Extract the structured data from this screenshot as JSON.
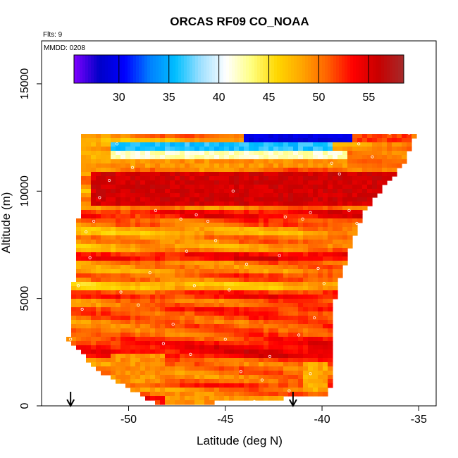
{
  "chart_data": {
    "type": "heatmap",
    "title": "ORCAS RF09 CO_NOAA",
    "flights_note": "Flts: 9",
    "date_note": "MMDD: 0208",
    "xlabel": "Latitude (deg N)",
    "ylabel": "Altitude (m)",
    "xlim": [
      -54.5,
      -34.1
    ],
    "ylim": [
      0,
      17000
    ],
    "x_ticks": [
      -50,
      -45,
      -40,
      -35
    ],
    "x_tick_labels": [
      "-50",
      "-45",
      "-40",
      "-35"
    ],
    "y_ticks": [
      0,
      5000,
      10000,
      15000
    ],
    "y_tick_labels": [
      "0",
      "5000",
      "10000",
      "15000"
    ],
    "colorbar": {
      "range": [
        25.5,
        58.5
      ],
      "ticks": [
        30,
        35,
        40,
        45,
        50,
        55
      ],
      "tick_labels": [
        "30",
        "35",
        "40",
        "45",
        "50",
        "55"
      ],
      "colors": [
        "#7f00ff",
        "#0000c8",
        "#0000ff",
        "#0080ff",
        "#00bfff",
        "#9fe0ff",
        "#ffffff",
        "#ffff80",
        "#ffd700",
        "#ffa500",
        "#ff6000",
        "#ff0000",
        "#c80000",
        "#a52a2a"
      ]
    },
    "domain_polygon": [
      [
        -52.4,
        12600
      ],
      [
        -38.4,
        12600
      ],
      [
        -38.0,
        12700
      ],
      [
        -35.1,
        12700
      ],
      [
        -35.8,
        11300
      ],
      [
        -37.8,
        9100
      ],
      [
        -39.3,
        5500
      ],
      [
        -39.6,
        500
      ],
      [
        -48.4,
        0
      ],
      [
        -51.8,
        1800
      ],
      [
        -53.1,
        3100
      ],
      [
        -52.9,
        5100
      ],
      [
        -52.6,
        8500
      ],
      [
        -52.4,
        10800
      ]
    ],
    "field_features": [
      {
        "lat_min": -52.0,
        "lat_max": -36.0,
        "alt_min": 9400,
        "alt_max": 10800,
        "value": 55.5
      },
      {
        "lat_min": -51.0,
        "lat_max": -39.0,
        "alt_min": 11000,
        "alt_max": 11500,
        "value": 49
      },
      {
        "lat_min": -51.0,
        "lat_max": -38.6,
        "alt_min": 11500,
        "alt_max": 11900,
        "value": 42
      },
      {
        "lat_min": -51.0,
        "lat_max": -39.5,
        "alt_min": 11900,
        "alt_max": 12250,
        "value": 36
      },
      {
        "lat_min": -44.0,
        "lat_max": -38.5,
        "alt_min": 12250,
        "alt_max": 12600,
        "value": 29
      },
      {
        "lat_min": -38.5,
        "lat_max": -35.5,
        "alt_min": 12200,
        "alt_max": 12700,
        "value": 52
      },
      {
        "lat_min": -48.0,
        "lat_max": -42.0,
        "alt_min": 0,
        "alt_max": 500,
        "value": 49
      },
      {
        "lat_min": -51.0,
        "lat_max": -48.0,
        "alt_min": 1000,
        "alt_max": 2500,
        "value": 49
      },
      {
        "lat_min": -41.0,
        "lat_max": -39.6,
        "alt_min": 600,
        "alt_max": 2000,
        "value": 48
      }
    ],
    "sample_points": [
      [
        -53.0,
        3100
      ],
      [
        -52.4,
        4500
      ],
      [
        -52.6,
        5600
      ],
      [
        -52.0,
        6900
      ],
      [
        -51.8,
        8600
      ],
      [
        -51.5,
        9700
      ],
      [
        -51.0,
        10500
      ],
      [
        -50.6,
        12200
      ],
      [
        -49.8,
        11100
      ],
      [
        -48.6,
        9100
      ],
      [
        -47.3,
        8700
      ],
      [
        -46.5,
        8900
      ],
      [
        -45.9,
        8600
      ],
      [
        -45.5,
        7700
      ],
      [
        -47.0,
        7200
      ],
      [
        -48.9,
        6200
      ],
      [
        -46.6,
        5600
      ],
      [
        -44.8,
        5400
      ],
      [
        -49.5,
        4700
      ],
      [
        -47.7,
        3800
      ],
      [
        -45.0,
        3100
      ],
      [
        -46.8,
        2400
      ],
      [
        -44.2,
        1600
      ],
      [
        -43.1,
        1200
      ],
      [
        -41.0,
        8700
      ],
      [
        -40.6,
        9000
      ],
      [
        -41.9,
        8800
      ],
      [
        -42.2,
        7000
      ],
      [
        -40.2,
        6400
      ],
      [
        -39.9,
        5700
      ],
      [
        -40.4,
        4100
      ],
      [
        -41.2,
        3300
      ],
      [
        -42.7,
        2300
      ],
      [
        -40.6,
        1500
      ],
      [
        -43.5,
        200
      ],
      [
        -41.7,
        700
      ],
      [
        -38.6,
        9100
      ],
      [
        -38.2,
        8500
      ],
      [
        -37.6,
        6300
      ],
      [
        -39.1,
        10800
      ],
      [
        -39.5,
        11300
      ],
      [
        -38.1,
        12200
      ],
      [
        -36.5,
        12700
      ],
      [
        -35.5,
        12700
      ],
      [
        -37.4,
        11600
      ],
      [
        -50.4,
        5300
      ],
      [
        -48.2,
        2900
      ],
      [
        -52.2,
        8100
      ],
      [
        -43.9,
        6600
      ],
      [
        -44.6,
        10000
      ]
    ],
    "arrows_lat": [
      -53.0,
      -41.5
    ]
  }
}
